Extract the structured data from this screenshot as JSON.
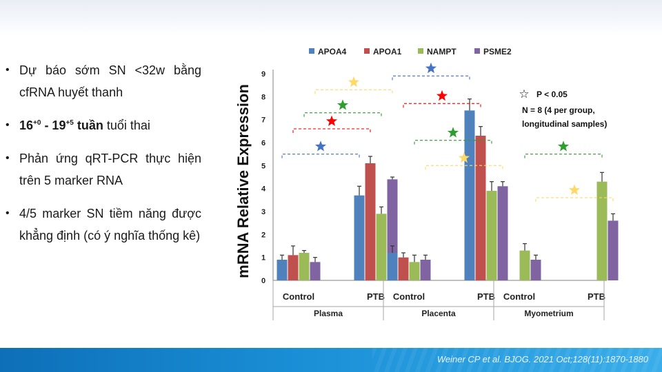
{
  "slide": {
    "bullets": [
      {
        "parts": [
          {
            "t": "Dự báo sớm SN <32w bằng cfRNA huyết thanh",
            "b": false
          }
        ]
      },
      {
        "parts": [
          {
            "t": "16",
            "b": true
          },
          {
            "t": "+0",
            "b": true,
            "sup": true
          },
          {
            "t": " - 19",
            "b": true
          },
          {
            "t": "+5",
            "b": true,
            "sup": true
          },
          {
            "t": " tuần",
            "b": true
          },
          {
            "t": " tuổi thai",
            "b": false
          }
        ]
      },
      {
        "parts": [
          {
            "t": "Phản ứng qRT-PCR thực hiện trên 5 marker RNA",
            "b": false
          }
        ]
      },
      {
        "parts": [
          {
            "t": "4/5 marker SN tiềm năng được khẳng định (có ý nghĩa thống kê)",
            "b": false
          }
        ]
      }
    ],
    "bullet_symbol": "•",
    "citation": "Weiner CP et al. BJOG. 2021 Oct;128(11):1870-1880"
  },
  "chart_data": {
    "type": "bar",
    "title": "",
    "ylabel": "mRNA Relative Expression",
    "xlabel": "",
    "ylim": [
      0,
      9
    ],
    "yticks": [
      0,
      1,
      2,
      3,
      4,
      5,
      6,
      7,
      8,
      9
    ],
    "legend_position": "top",
    "series": [
      {
        "name": "APOA4",
        "color": "#4f81bd"
      },
      {
        "name": "APOA1",
        "color": "#c0504d"
      },
      {
        "name": "NAMPT",
        "color": "#9bbb59"
      },
      {
        "name": "PSME2",
        "color": "#8064a2"
      }
    ],
    "tissues": [
      {
        "name": "Plasma",
        "groups": [
          {
            "label": "Control",
            "values": [
              0.9,
              1.1,
              1.2,
              0.8
            ],
            "errors": [
              0.2,
              0.4,
              0.1,
              0.2
            ]
          },
          {
            "label": "PTB",
            "values": [
              3.7,
              5.1,
              2.9,
              4.4
            ],
            "errors": [
              0.4,
              0.3,
              0.3,
              0.1
            ]
          }
        ]
      },
      {
        "name": "Placenta",
        "groups": [
          {
            "label": "Control",
            "values": [
              1.2,
              1.0,
              0.8,
              0.9
            ],
            "errors": [
              0.3,
              0.2,
              0.3,
              0.2
            ]
          },
          {
            "label": "PTB",
            "values": [
              7.4,
              6.3,
              3.9,
              4.1
            ],
            "errors": [
              0.5,
              0.4,
              0.4,
              0.2
            ]
          }
        ]
      },
      {
        "name": "Myometrium",
        "groups": [
          {
            "label": "Control",
            "values": [
              0.0,
              0.0,
              1.3,
              0.9
            ],
            "errors": [
              0.0,
              0.0,
              0.3,
              0.2
            ]
          },
          {
            "label": "PTB",
            "values": [
              0.0,
              0.0,
              4.3,
              2.6
            ],
            "errors": [
              0.0,
              0.0,
              0.4,
              0.3
            ]
          }
        ]
      }
    ],
    "significance": [
      {
        "tissue": 0,
        "series": 0,
        "y": 5.5,
        "color": "#4472c4"
      },
      {
        "tissue": 0,
        "series": 1,
        "y": 6.6,
        "color": "#ff0000"
      },
      {
        "tissue": 0,
        "series": 2,
        "y": 7.3,
        "color": "#2e9e2e"
      },
      {
        "tissue": 0,
        "series": 3,
        "y": 8.3,
        "color": "#ffd966"
      },
      {
        "tissue": 1,
        "series": 0,
        "y": 8.9,
        "color": "#4472c4"
      },
      {
        "tissue": 1,
        "series": 1,
        "y": 7.7,
        "color": "#ff0000"
      },
      {
        "tissue": 1,
        "series": 2,
        "y": 6.1,
        "color": "#2e9e2e"
      },
      {
        "tissue": 1,
        "series": 3,
        "y": 5.0,
        "color": "#ffd966"
      },
      {
        "tissue": 2,
        "series": 2,
        "y": 5.5,
        "color": "#2e9e2e"
      },
      {
        "tissue": 2,
        "series": 3,
        "y": 3.6,
        "color": "#ffd966"
      }
    ],
    "notes": [
      {
        "symbol": "☆",
        "text": "P < 0.05"
      },
      {
        "text": "N  =  8  (4 per group,"
      },
      {
        "text": "longitudinal samples)"
      }
    ]
  }
}
